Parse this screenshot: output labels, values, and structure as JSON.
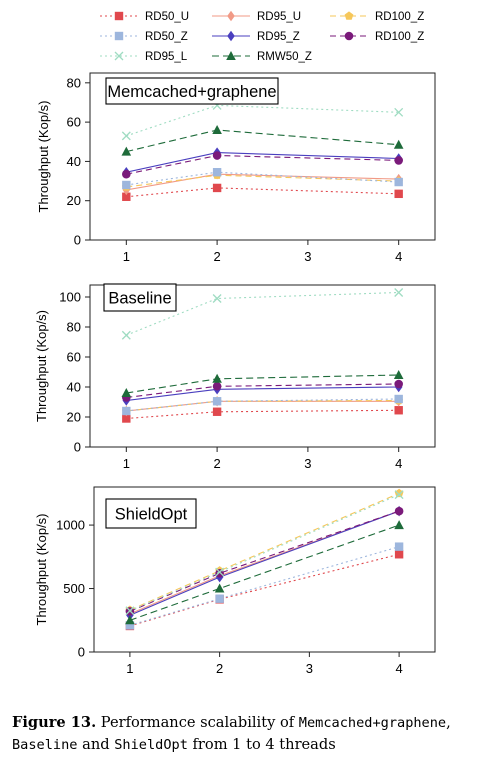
{
  "legend": {
    "entries": [
      {
        "label": "RD50_U",
        "series_key": "RD50_U"
      },
      {
        "label": "RD95_U",
        "series_key": "RD95_U"
      },
      {
        "label": "RD100_Z",
        "series_key": "RD100_Z"
      },
      {
        "label": "RD50_Z",
        "series_key": "RD50_Z"
      },
      {
        "label": "RD95_Z",
        "series_key": "RD95_Z"
      },
      {
        "label": "RD100_Z",
        "series_key": "RD100_Z_b"
      },
      {
        "label": "RD95_L",
        "series_key": "RD95_L"
      },
      {
        "label": "RMW50_Z",
        "series_key": "RMW50_Z"
      }
    ]
  },
  "series_styles": {
    "RD50_U": {
      "color": "#e0484d",
      "marker": "square",
      "dash": "2,3"
    },
    "RD95_U": {
      "color": "#f19a86",
      "marker": "diamond",
      "dash": ""
    },
    "RD100_Z": {
      "color": "#f6c75a",
      "marker": "pentagon",
      "dash": "6,4"
    },
    "RD50_Z": {
      "color": "#9db6dd",
      "marker": "square",
      "dash": "2,3"
    },
    "RD95_Z": {
      "color": "#4a3fbf",
      "marker": "diamond",
      "dash": ""
    },
    "RD100_Z_b": {
      "color": "#7a1a7a",
      "marker": "circle",
      "dash": "6,4"
    },
    "RD95_L": {
      "color": "#9fdcc2",
      "marker": "x",
      "dash": "2,3"
    },
    "RMW50_Z": {
      "color": "#1e6b3a",
      "marker": "triangle",
      "dash": "7,4"
    }
  },
  "chart_data": [
    {
      "type": "line",
      "title": "Memcached+graphene",
      "ylabel": "Throughput (Kop/s)",
      "x": [
        1,
        2,
        4
      ],
      "xticks": [
        1,
        2,
        3,
        4
      ],
      "xlim": [
        0.6,
        4.4
      ],
      "ylim": [
        0,
        85
      ],
      "yticks": [
        0,
        20,
        40,
        60,
        80
      ],
      "series": [
        {
          "key": "RD50_U",
          "name": "RD50_U",
          "values": [
            22,
            26.5,
            23.5
          ]
        },
        {
          "key": "RD95_U",
          "name": "RD95_U",
          "values": [
            25.5,
            33.5,
            31
          ]
        },
        {
          "key": "RD100_Z",
          "name": "RD100_Z",
          "values": [
            27,
            33,
            30
          ]
        },
        {
          "key": "RD50_Z",
          "name": "RD50_Z",
          "values": [
            28,
            34.5,
            29.5
          ]
        },
        {
          "key": "RD95_Z",
          "name": "RD95_Z",
          "values": [
            34.5,
            44.5,
            41.5
          ]
        },
        {
          "key": "RD100_Z_b",
          "name": "RD100_Z",
          "values": [
            33.5,
            43,
            40.5
          ]
        },
        {
          "key": "RD95_L",
          "name": "RD95_L",
          "values": [
            53,
            68.5,
            65
          ]
        },
        {
          "key": "RMW50_Z",
          "name": "RMW50_Z",
          "values": [
            45,
            56,
            48.5
          ]
        }
      ]
    },
    {
      "type": "line",
      "title": "Baseline",
      "ylabel": "Throughput (Kop/s)",
      "x": [
        1,
        2,
        4
      ],
      "xticks": [
        1,
        2,
        3,
        4
      ],
      "xlim": [
        0.6,
        4.4
      ],
      "ylim": [
        0,
        108
      ],
      "yticks": [
        0,
        20,
        40,
        60,
        80,
        100
      ],
      "series": [
        {
          "key": "RD50_U",
          "name": "RD50_U",
          "values": [
            19,
            23.5,
            24.5
          ]
        },
        {
          "key": "RD95_U",
          "name": "RD95_U",
          "values": [
            24,
            30.5,
            30.5
          ]
        },
        {
          "key": "RD100_Z",
          "name": "RD100_Z",
          "values": [
            24,
            30.5,
            31
          ]
        },
        {
          "key": "RD50_Z",
          "name": "RD50_Z",
          "values": [
            24,
            30.5,
            32
          ]
        },
        {
          "key": "RD95_Z",
          "name": "RD95_Z",
          "values": [
            31,
            38.5,
            40
          ]
        },
        {
          "key": "RD100_Z_b",
          "name": "RD100_Z",
          "values": [
            33,
            40.5,
            42
          ]
        },
        {
          "key": "RD95_L",
          "name": "RD95_L",
          "values": [
            74.5,
            99,
            103
          ]
        },
        {
          "key": "RMW50_Z",
          "name": "RMW50_Z",
          "values": [
            36,
            45.5,
            48
          ]
        }
      ]
    },
    {
      "type": "line",
      "title": "ShieldOpt",
      "ylabel": "Throughput (Kop/s)",
      "x": [
        1,
        2,
        4
      ],
      "xticks": [
        1,
        2,
        3,
        4
      ],
      "xlim": [
        0.6,
        4.4
      ],
      "ylim": [
        0,
        1300
      ],
      "yticks": [
        0,
        500,
        1000
      ],
      "series": [
        {
          "key": "RD50_U",
          "name": "RD50_U",
          "values": [
            205,
            415,
            770
          ]
        },
        {
          "key": "RD95_U",
          "name": "RD95_U",
          "values": [
            300,
            600,
            1110
          ]
        },
        {
          "key": "RD100_Z",
          "name": "RD100_Z",
          "values": [
            330,
            640,
            1250
          ]
        },
        {
          "key": "RD50_Z",
          "name": "RD50_Z",
          "values": [
            210,
            420,
            830
          ]
        },
        {
          "key": "RD95_Z",
          "name": "RD95_Z",
          "values": [
            290,
            590,
            1110
          ]
        },
        {
          "key": "RD100_Z_b",
          "name": "RD100_Z",
          "values": [
            320,
            620,
            1110
          ]
        },
        {
          "key": "RD95_L",
          "name": "RD95_L",
          "values": [
            325,
            630,
            1240
          ]
        },
        {
          "key": "RMW50_Z",
          "name": "RMW50_Z",
          "values": [
            250,
            500,
            1000
          ]
        }
      ]
    }
  ],
  "caption": {
    "figure_label": "Figure 13.",
    "text_1": " Performance scalability of ",
    "mono_1": "Memcached+graphene",
    "text_2": ",",
    "mono_2": "Baseline",
    "text_3": " and ",
    "mono_3": "ShieldOpt",
    "text_4": " from 1 to 4 threads"
  }
}
